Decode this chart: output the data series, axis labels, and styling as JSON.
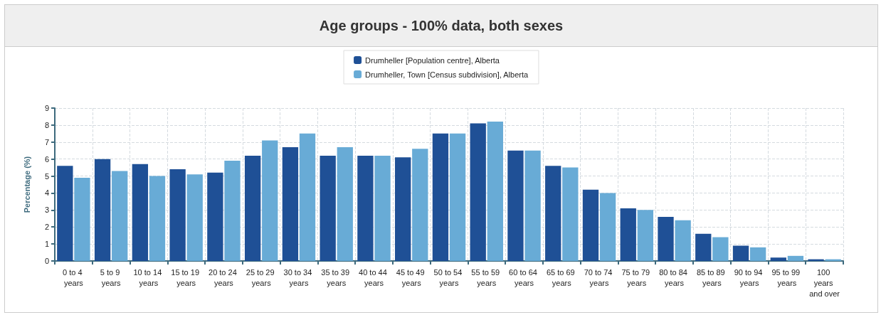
{
  "chart_data": {
    "type": "bar",
    "title": "Age groups - 100% data, both sexes",
    "ylabel": "Percentage (%)",
    "categories": [
      "0 to 4 years",
      "5 to 9 years",
      "10 to 14 years",
      "15 to 19 years",
      "20 to 24 years",
      "25 to 29 years",
      "30 to 34 years",
      "35 to 39 years",
      "40 to 44 years",
      "45 to 49 years",
      "50 to 54 years",
      "55 to 59 years",
      "60 to 64 years",
      "65 to 69 years",
      "70 to 74 years",
      "75 to 79 years",
      "80 to 84 years",
      "85 to 89 years",
      "90 to 94 years",
      "95 to 99 years",
      "100 years and over"
    ],
    "series": [
      {
        "name": "Drumheller [Population centre], Alberta",
        "color": "#1f5096",
        "values": [
          5.6,
          6.0,
          5.7,
          5.4,
          5.2,
          6.2,
          6.7,
          6.2,
          6.2,
          6.1,
          7.5,
          8.1,
          6.5,
          5.6,
          4.2,
          3.1,
          2.6,
          1.6,
          0.9,
          0.2,
          0.1
        ]
      },
      {
        "name": "Drumheller, Town [Census subdivision], Alberta",
        "color": "#68abd6",
        "values": [
          4.9,
          5.3,
          5.0,
          5.1,
          5.9,
          7.1,
          7.5,
          6.7,
          6.2,
          6.6,
          7.5,
          8.2,
          6.5,
          5.5,
          4.0,
          3.0,
          2.4,
          1.4,
          0.8,
          0.3,
          0.1
        ]
      }
    ],
    "ylim": [
      0,
      9
    ],
    "yticks": [
      0,
      1,
      2,
      3,
      4,
      5,
      6,
      7,
      8,
      9
    ],
    "grid": true,
    "legend": "top"
  }
}
